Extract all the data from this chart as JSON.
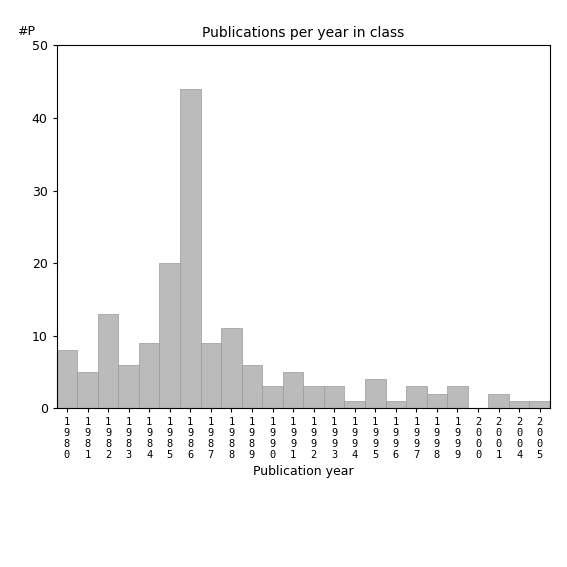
{
  "title": "Publications per year in class",
  "xlabel": "Publication year",
  "ylabel": "#P",
  "categories": [
    "1980",
    "1981",
    "1982",
    "1983",
    "1984",
    "1985",
    "1986",
    "1987",
    "1988",
    "1989",
    "1990",
    "1991",
    "1992",
    "1993",
    "1994",
    "1995",
    "1996",
    "1997",
    "1998",
    "1999",
    "2000",
    "2001",
    "2004",
    "2005"
  ],
  "values": [
    8,
    5,
    13,
    6,
    9,
    20,
    44,
    9,
    11,
    6,
    3,
    5,
    3,
    3,
    1,
    4,
    1,
    3,
    2,
    3,
    0,
    2,
    1,
    1
  ],
  "bar_color": "#bbbbbb",
  "bar_edgecolor": "#999999",
  "ylim": [
    0,
    50
  ],
  "yticks": [
    0,
    10,
    20,
    30,
    40,
    50
  ],
  "figsize": [
    5.67,
    5.67
  ],
  "dpi": 100
}
